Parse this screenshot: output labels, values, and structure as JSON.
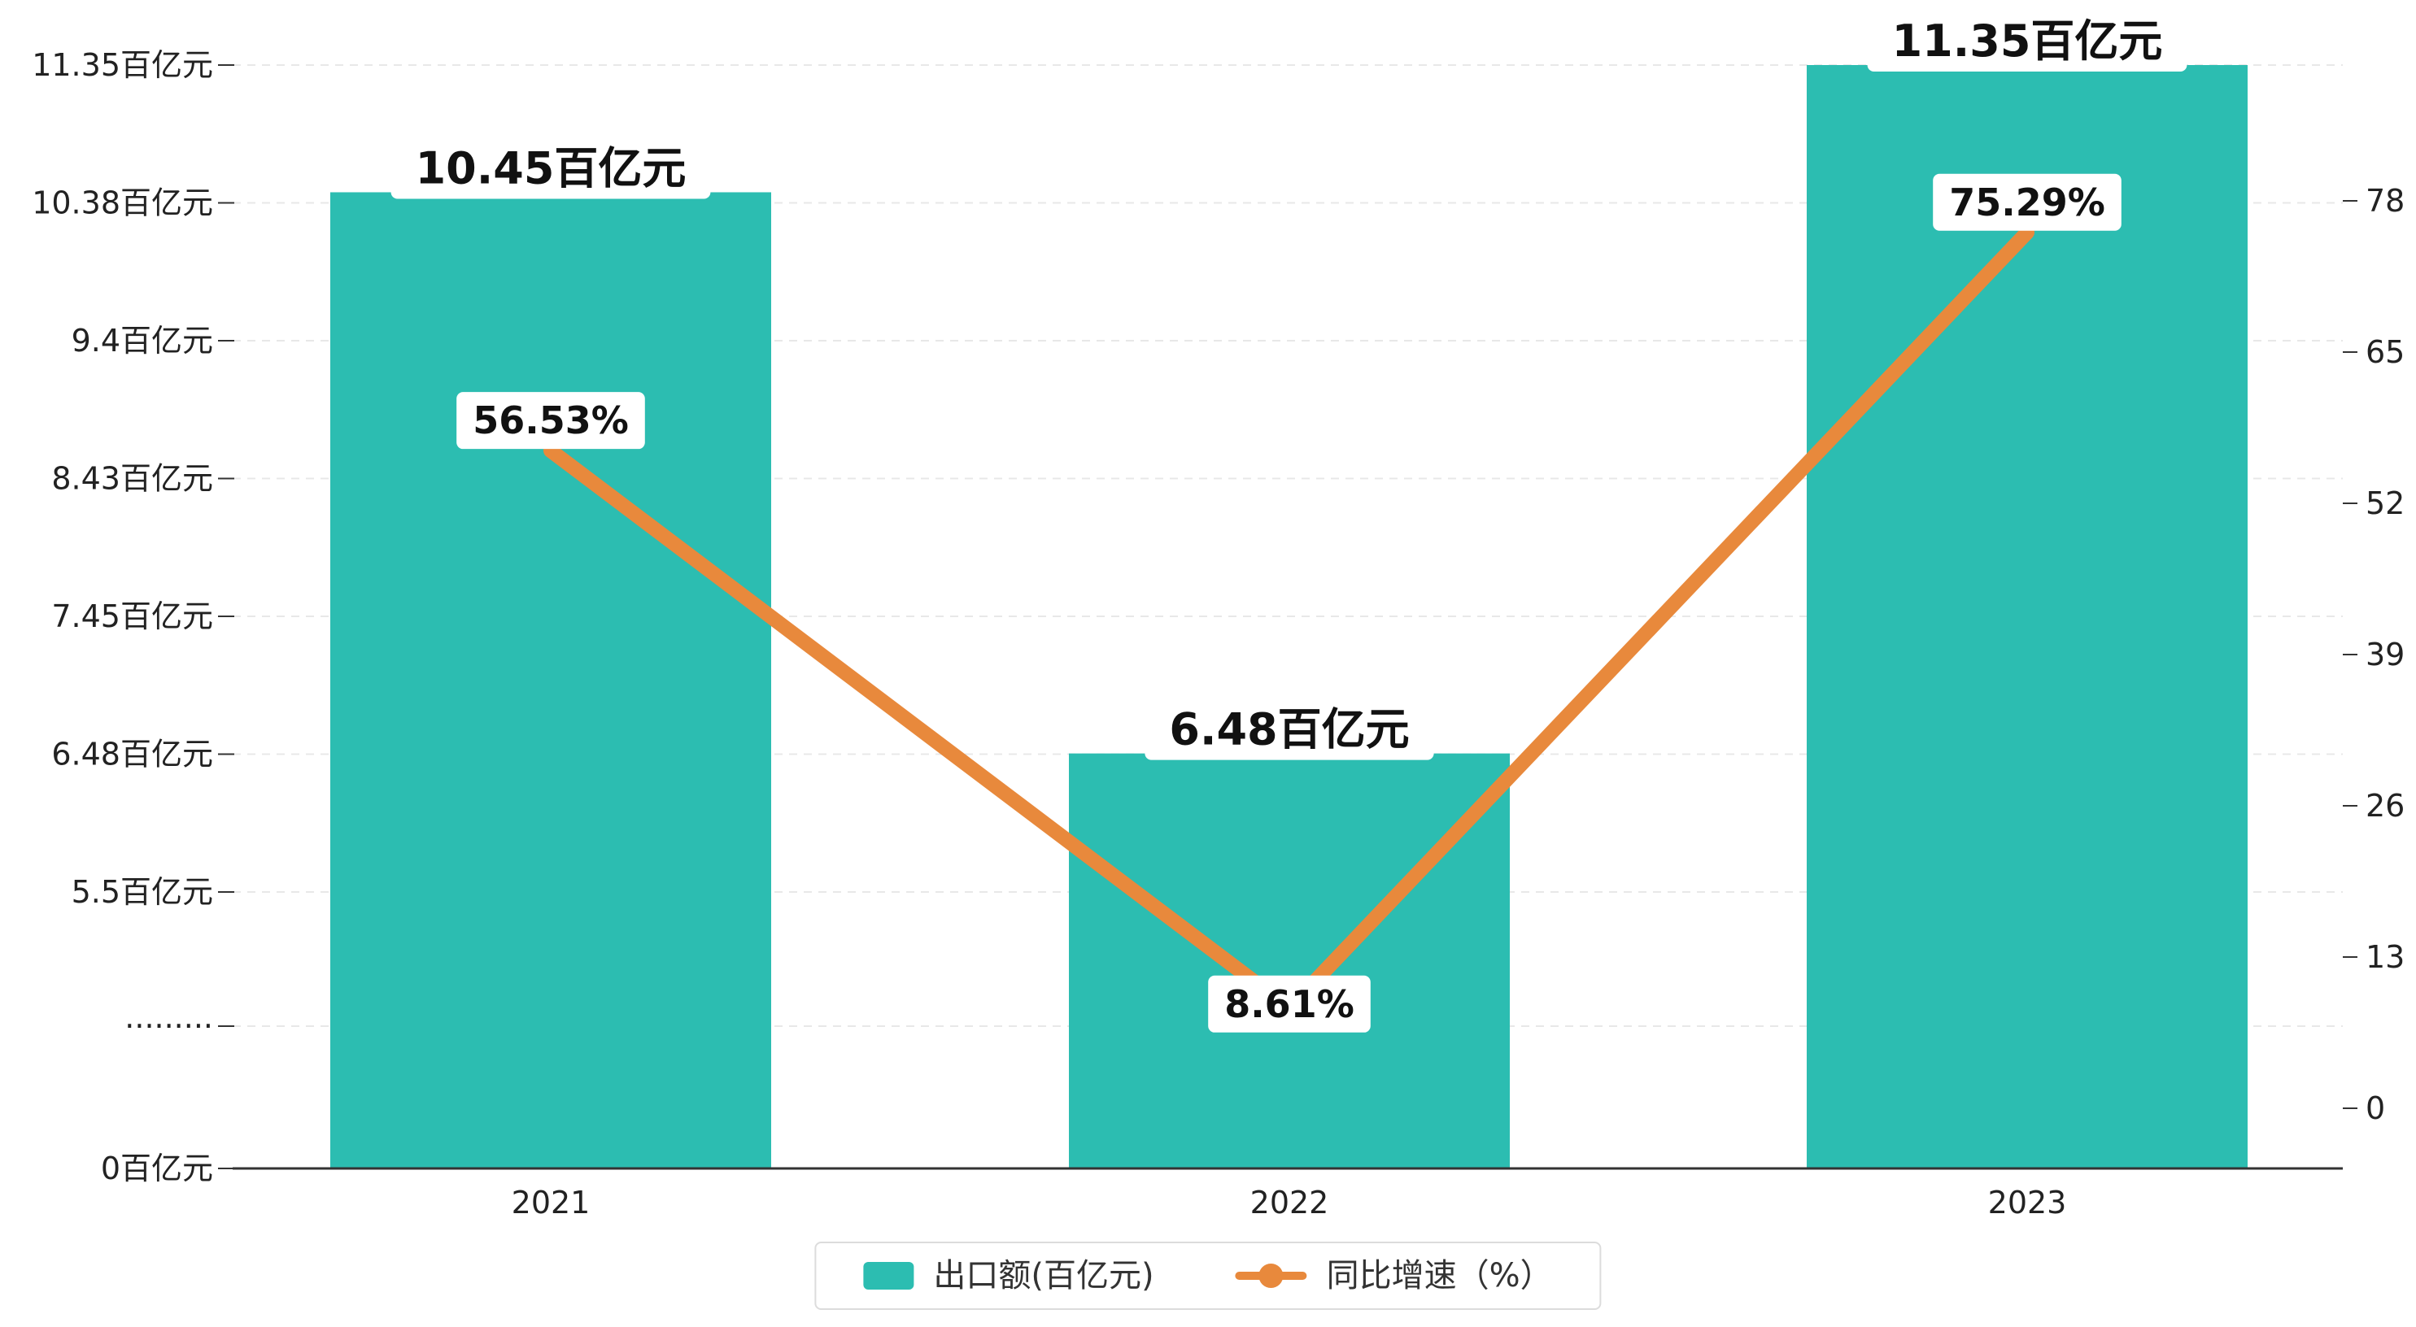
{
  "chart_data": {
    "type": "bar",
    "combo": "bar+line",
    "categories": [
      "2021",
      "2022",
      "2023"
    ],
    "series": [
      {
        "name": "出口额(百亿元)",
        "type": "bar",
        "axis": "left",
        "unit": "百亿元",
        "color": "#2cbdb1",
        "values": [
          10.45,
          6.48,
          11.35
        ],
        "labels": [
          "10.45百亿元",
          "6.48百亿元",
          "11.35百亿元"
        ]
      },
      {
        "name": "同比增速（%）",
        "type": "line",
        "axis": "right",
        "unit": "%",
        "color": "#e8893c",
        "values": [
          56.53,
          8.61,
          75.29
        ],
        "labels": [
          "56.53%",
          "8.61%",
          "75.29%"
        ]
      }
    ],
    "left_axis": {
      "tick_labels": [
        "11.35百亿元",
        "10.38百亿元",
        "9.4百亿元",
        "8.43百亿元",
        "7.45百亿元",
        "6.48百亿元",
        "5.5百亿元",
        "·········",
        "0百亿元"
      ],
      "tick_values": [
        11.35,
        10.38,
        9.4,
        8.43,
        7.45,
        6.48,
        5.5,
        null,
        0
      ],
      "linear_range": [
        5.5,
        11.35
      ],
      "has_break": true
    },
    "right_axis": {
      "tick_labels": [
        "78",
        "65",
        "52",
        "39",
        "26",
        "13",
        "0"
      ],
      "tick_values": [
        78,
        65,
        52,
        39,
        26,
        13,
        0
      ]
    },
    "legend": [
      {
        "label": "出口额(百亿元)",
        "marker": "rect",
        "color": "#2cbdb1"
      },
      {
        "label": "同比增速（%）",
        "marker": "line-dot",
        "color": "#e8893c"
      }
    ],
    "grid": true,
    "legend_position": "bottom-center",
    "colors": {
      "bar": "#2cbdb1",
      "line": "#e8893c",
      "axis_text": "#222222",
      "axis_line": "#333333",
      "grid_line": "#e8e8e8",
      "label_bg": "#ffffff",
      "label_text": "#111111"
    }
  }
}
